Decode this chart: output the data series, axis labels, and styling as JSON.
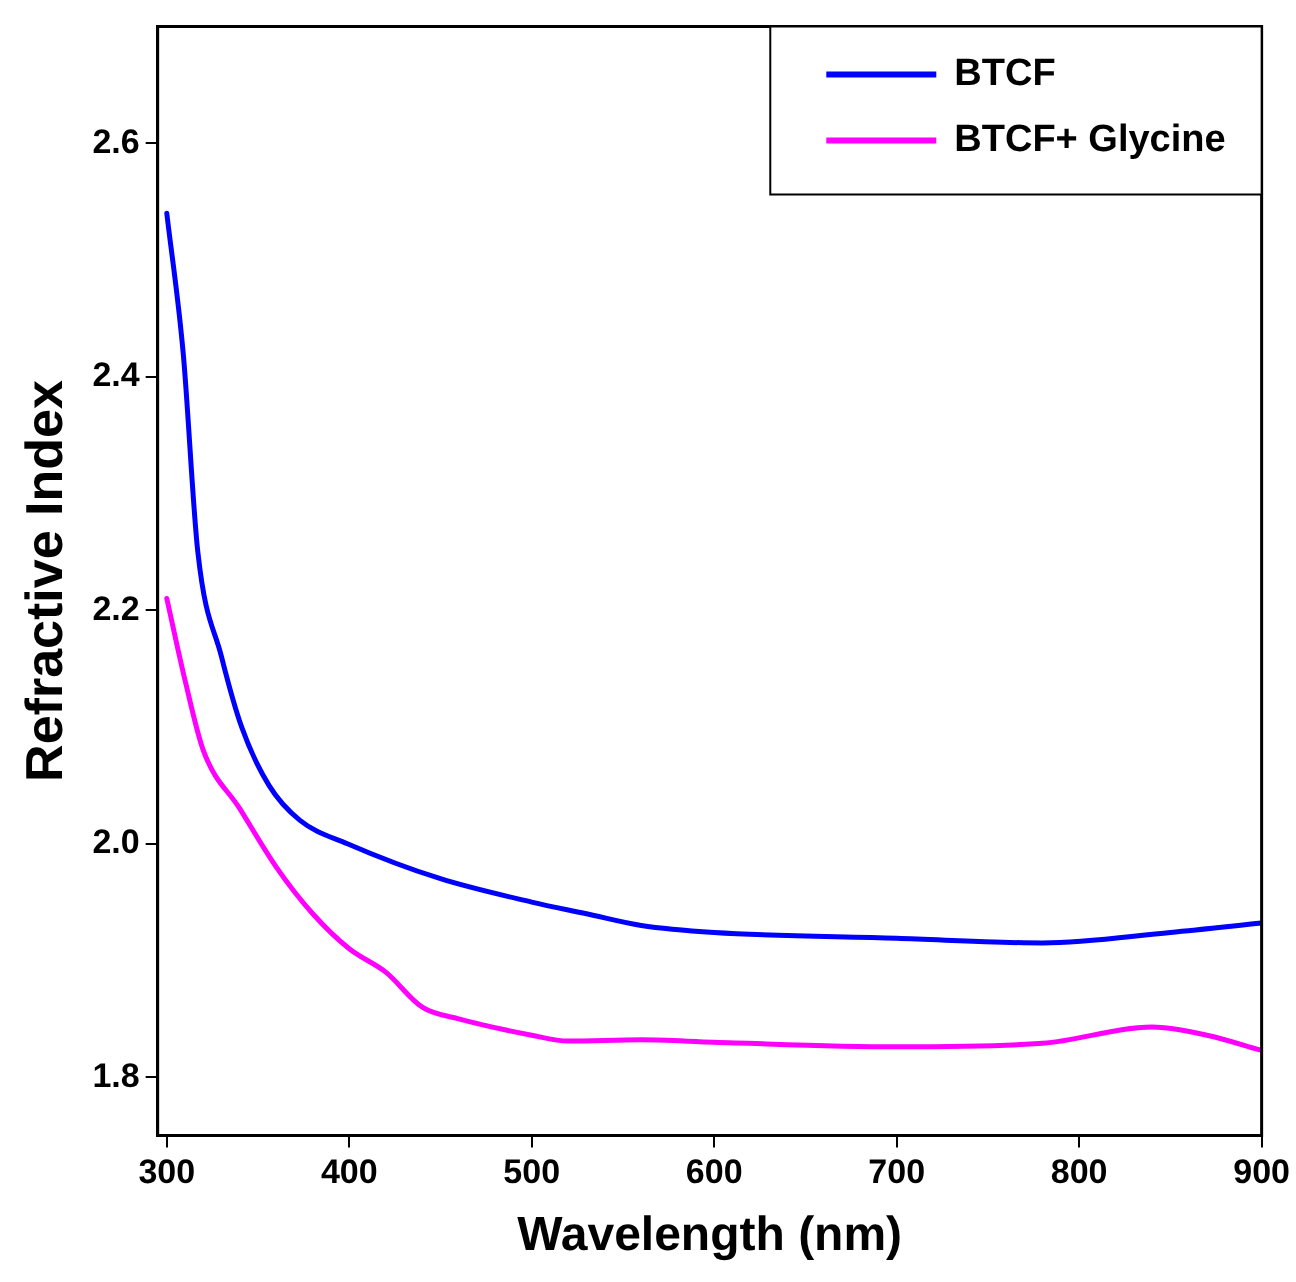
{
  "chart_data": {
    "type": "line",
    "xlabel": "Wavelength (nm)",
    "ylabel": "Refractive Index",
    "xlim": [
      295,
      900
    ],
    "xticks": [
      300,
      400,
      500,
      600,
      700,
      800,
      900
    ],
    "ylim": [
      1.75,
      2.7
    ],
    "yticks": [
      {
        "value": 1.8,
        "label": "1.8"
      },
      {
        "value": 2.0,
        "label": "2.0"
      },
      {
        "value": 2.2,
        "label": "2.2"
      },
      {
        "value": 2.4,
        "label": "2.4"
      },
      {
        "value": 2.6,
        "label": "2.6"
      }
    ],
    "grid": false,
    "legend": "top right",
    "marker": "none",
    "line_style": "solid",
    "series": [
      {
        "name": "BTCF",
        "color": "#0000ff",
        "x": [
          300,
          309,
          317,
          330,
          341,
          356,
          373,
          399,
          450,
          500,
          530,
          560,
          600,
          700,
          780,
          850,
          900
        ],
        "values": [
          2.54,
          2.42,
          2.25,
          2.16,
          2.1,
          2.05,
          2.02,
          2.0,
          1.97,
          1.95,
          1.94,
          1.93,
          1.924,
          1.919,
          1.915,
          1.924,
          1.932
        ]
      },
      {
        "name": "BTCF+ Glycine",
        "color": "#ff00ff",
        "x": [
          300,
          310,
          320,
          340,
          360,
          380,
          400,
          420,
          440,
          460,
          500,
          520,
          560,
          600,
          700,
          780,
          840,
          870,
          900
        ],
        "values": [
          2.21,
          2.14,
          2.08,
          2.03,
          1.98,
          1.94,
          1.91,
          1.89,
          1.86,
          1.85,
          1.836,
          1.831,
          1.832,
          1.83,
          1.826,
          1.829,
          1.843,
          1.836,
          1.823
        ]
      }
    ]
  }
}
